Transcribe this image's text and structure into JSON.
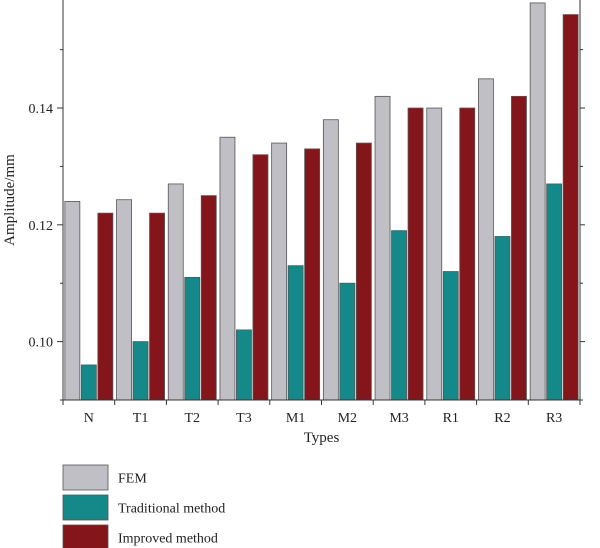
{
  "chart_data": {
    "type": "bar",
    "categories": [
      "N",
      "T1",
      "T2",
      "T3",
      "M1",
      "M2",
      "M3",
      "R1",
      "R2",
      "R3"
    ],
    "series": [
      {
        "name": "FEM",
        "color": "#c0bfc5",
        "values": [
          0.124,
          0.1243,
          0.127,
          0.135,
          0.134,
          0.138,
          0.142,
          0.14,
          0.145,
          0.158
        ]
      },
      {
        "name": "Traditional method",
        "color": "#15888a",
        "values": [
          0.096,
          0.1,
          0.111,
          0.102,
          0.113,
          0.11,
          0.119,
          0.112,
          0.118,
          0.127
        ]
      },
      {
        "name": "Improved method",
        "color": "#84151a",
        "values": [
          0.122,
          0.122,
          0.125,
          0.132,
          0.133,
          0.134,
          0.14,
          0.14,
          0.142,
          0.156
        ]
      }
    ],
    "xlabel": "Types",
    "ylabel": "Amplitude/mm",
    "ylim": [
      0.09,
      0.1585
    ],
    "yticks": [
      0.1,
      0.12,
      0.14
    ],
    "ytick_labels": [
      "0.10",
      "0.12",
      "0.14"
    ],
    "legend_position": "bottom-left",
    "grid": false
  }
}
